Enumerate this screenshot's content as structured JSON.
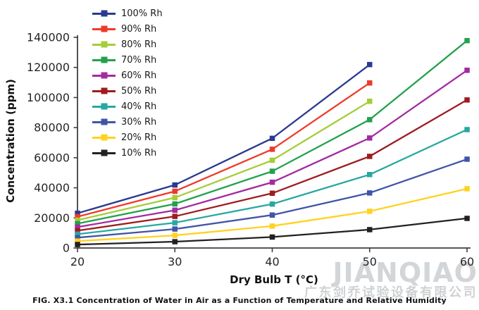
{
  "figure": {
    "caption": "FIG. X3.1 Concentration of Water in Air as a Function of Temperature and Relative Humidity"
  },
  "watermark": {
    "brand": "JIANQIAO",
    "company": "广东剑乔试验设备有限公司"
  },
  "chart_data": {
    "type": "line",
    "title": "",
    "xlabel": "Dry Bulb T (°C)",
    "ylabel": "Concentration (ppm)",
    "x": [
      20,
      30,
      40,
      50,
      60
    ],
    "xticks": [
      20,
      30,
      40,
      50,
      60
    ],
    "yticks": [
      0,
      20000,
      40000,
      60000,
      80000,
      100000,
      120000,
      140000
    ],
    "xlim": [
      20,
      60
    ],
    "ylim": [
      0,
      140000
    ],
    "grid": false,
    "legend_position": "top-left-inside",
    "marker": "square",
    "axis_color": "#3f3f3f",
    "series": [
      {
        "name": "100% Rh",
        "color": "#2b3990",
        "values": [
          23100,
          41900,
          72900,
          121900,
          null
        ]
      },
      {
        "name": "90% Rh",
        "color": "#ee3a2b",
        "values": [
          20800,
          37700,
          65600,
          109700,
          null
        ]
      },
      {
        "name": "80% Rh",
        "color": "#a5cd39",
        "values": [
          18500,
          33500,
          58300,
          97500,
          null
        ]
      },
      {
        "name": "70% Rh",
        "color": "#23a14d",
        "values": [
          16200,
          29300,
          51000,
          85300,
          137800
        ]
      },
      {
        "name": "60% Rh",
        "color": "#a32ba1",
        "values": [
          13900,
          25100,
          43700,
          73100,
          118100
        ]
      },
      {
        "name": "50% Rh",
        "color": "#9e1c20",
        "values": [
          11500,
          21000,
          36400,
          60900,
          98400
        ]
      },
      {
        "name": "40% Rh",
        "color": "#27a8a1",
        "values": [
          9200,
          16800,
          29200,
          48800,
          78700
        ]
      },
      {
        "name": "30% Rh",
        "color": "#4155a7",
        "values": [
          6900,
          12600,
          21900,
          36600,
          59000
        ]
      },
      {
        "name": "20% Rh",
        "color": "#ffd21f",
        "values": [
          4600,
          8400,
          14600,
          24400,
          39400
        ]
      },
      {
        "name": "10% Rh",
        "color": "#232021",
        "values": [
          2300,
          4200,
          7300,
          12200,
          19700
        ]
      }
    ]
  }
}
